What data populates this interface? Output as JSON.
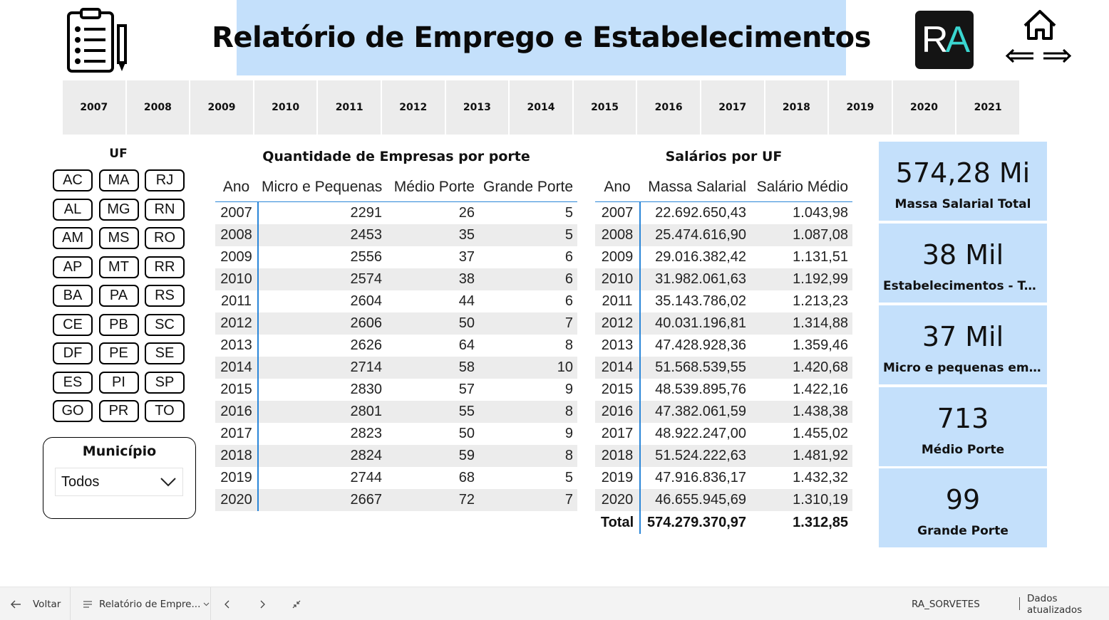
{
  "header": {
    "title": "Relatório de Emprego e Estabelecimentos",
    "logo_left": "R",
    "logo_right": "A"
  },
  "years": [
    "2007",
    "2008",
    "2009",
    "2010",
    "2011",
    "2012",
    "2013",
    "2014",
    "2015",
    "2016",
    "2017",
    "2018",
    "2019",
    "2020",
    "2021"
  ],
  "uf": {
    "title": "UF",
    "items": [
      "AC",
      "MA",
      "RJ",
      "AL",
      "MG",
      "RN",
      "AM",
      "MS",
      "RO",
      "AP",
      "MT",
      "RR",
      "BA",
      "PA",
      "RS",
      "CE",
      "PB",
      "SC",
      "DF",
      "PE",
      "SE",
      "ES",
      "PI",
      "SP",
      "GO",
      "PR",
      "TO"
    ]
  },
  "municipio": {
    "title": "Município",
    "selected": "Todos"
  },
  "empresas": {
    "title": "Quantidade de Empresas por porte",
    "columns": [
      "Ano",
      "Micro e Pequenas",
      "Médio Porte",
      "Grande Porte"
    ],
    "rows": [
      [
        "2007",
        "2291",
        "26",
        "5"
      ],
      [
        "2008",
        "2453",
        "35",
        "5"
      ],
      [
        "2009",
        "2556",
        "37",
        "6"
      ],
      [
        "2010",
        "2574",
        "38",
        "6"
      ],
      [
        "2011",
        "2604",
        "44",
        "6"
      ],
      [
        "2012",
        "2606",
        "50",
        "7"
      ],
      [
        "2013",
        "2626",
        "64",
        "8"
      ],
      [
        "2014",
        "2714",
        "58",
        "10"
      ],
      [
        "2015",
        "2830",
        "57",
        "9"
      ],
      [
        "2016",
        "2801",
        "55",
        "8"
      ],
      [
        "2017",
        "2823",
        "50",
        "9"
      ],
      [
        "2018",
        "2824",
        "59",
        "8"
      ],
      [
        "2019",
        "2744",
        "68",
        "5"
      ],
      [
        "2020",
        "2667",
        "72",
        "7"
      ]
    ]
  },
  "salarios": {
    "title": "Salários por UF",
    "columns": [
      "Ano",
      "Massa Salarial",
      "Salário Médio"
    ],
    "rows": [
      [
        "2007",
        "22.692.650,43",
        "1.043,98"
      ],
      [
        "2008",
        "25.474.616,90",
        "1.087,08"
      ],
      [
        "2009",
        "29.016.382,42",
        "1.131,51"
      ],
      [
        "2010",
        "31.982.061,63",
        "1.192,99"
      ],
      [
        "2011",
        "35.143.786,02",
        "1.213,23"
      ],
      [
        "2012",
        "40.031.196,81",
        "1.314,88"
      ],
      [
        "2013",
        "47.428.928,36",
        "1.359,46"
      ],
      [
        "2014",
        "51.568.539,55",
        "1.420,68"
      ],
      [
        "2015",
        "48.539.895,76",
        "1.422,16"
      ],
      [
        "2016",
        "47.382.061,59",
        "1.438,38"
      ],
      [
        "2017",
        "48.922.247,00",
        "1.455,02"
      ],
      [
        "2018",
        "51.524.222,63",
        "1.481,92"
      ],
      [
        "2019",
        "47.916.836,17",
        "1.432,32"
      ],
      [
        "2020",
        "46.655.945,69",
        "1.310,19"
      ]
    ],
    "total": [
      "Total",
      "574.279.370,97",
      "1.312,85"
    ]
  },
  "kpis": [
    {
      "value": "574,28 Mi",
      "label": "Massa Salarial Total"
    },
    {
      "value": "38 Mil",
      "label": "Estabelecimentos - Total"
    },
    {
      "value": "37 Mil",
      "label": "Micro e pequenas empr..."
    },
    {
      "value": "713",
      "label": "Médio Porte"
    },
    {
      "value": "99",
      "label": "Grande Porte"
    }
  ],
  "bottom_bar": {
    "back_label": "Voltar",
    "page_label": "Relatório de Empre...",
    "workspace": "RA_SORVETES",
    "status": "Dados atualizados"
  },
  "colors": {
    "accent_panel": "#c4e0fb",
    "table_line": "#2b86d8",
    "slicer_bg": "#ececec"
  }
}
